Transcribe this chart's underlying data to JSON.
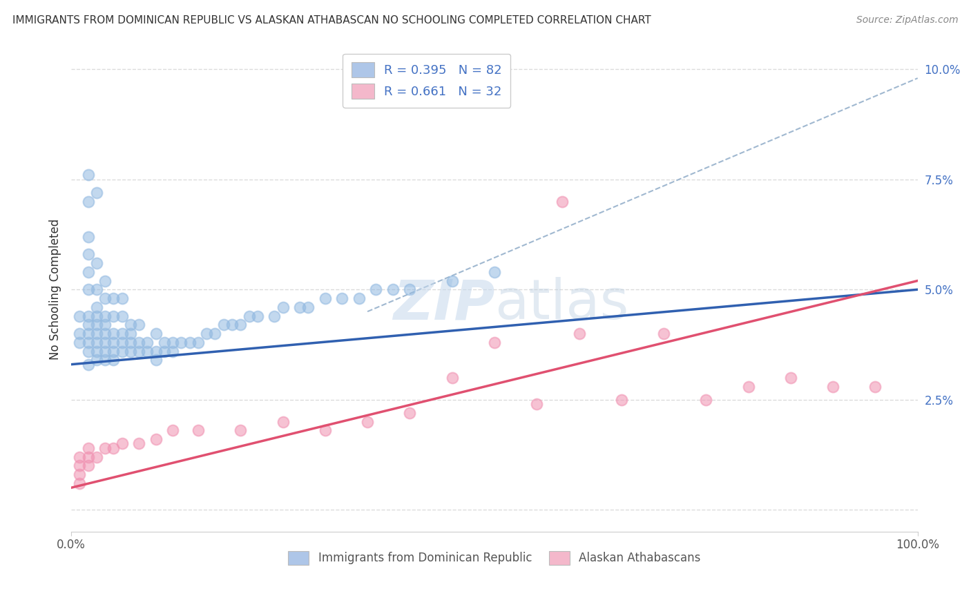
{
  "title": "IMMIGRANTS FROM DOMINICAN REPUBLIC VS ALASKAN ATHABASCAN NO SCHOOLING COMPLETED CORRELATION CHART",
  "source": "Source: ZipAtlas.com",
  "ylabel": "No Schooling Completed",
  "legend_label1": "R = 0.395   N = 82",
  "legend_label2": "R = 0.661   N = 32",
  "legend_color1": "#aec6e8",
  "legend_color2": "#f4b8cb",
  "blue_color": "#90b8e0",
  "pink_color": "#f090b0",
  "blue_line_color": "#3060b0",
  "pink_line_color": "#e05070",
  "dash_line_color": "#a0b8d0",
  "background_color": "#ffffff",
  "grid_color": "#d8d8d8",
  "xlim": [
    0.0,
    1.0
  ],
  "ylim": [
    -0.005,
    0.105
  ],
  "y_tick_vals": [
    0.0,
    0.025,
    0.05,
    0.075,
    0.1
  ],
  "blue_x": [
    0.01,
    0.01,
    0.01,
    0.02,
    0.02,
    0.02,
    0.02,
    0.02,
    0.02,
    0.02,
    0.02,
    0.02,
    0.02,
    0.02,
    0.02,
    0.03,
    0.03,
    0.03,
    0.03,
    0.03,
    0.03,
    0.03,
    0.03,
    0.03,
    0.03,
    0.04,
    0.04,
    0.04,
    0.04,
    0.04,
    0.04,
    0.04,
    0.04,
    0.05,
    0.05,
    0.05,
    0.05,
    0.05,
    0.05,
    0.06,
    0.06,
    0.06,
    0.06,
    0.06,
    0.07,
    0.07,
    0.07,
    0.07,
    0.08,
    0.08,
    0.08,
    0.09,
    0.09,
    0.1,
    0.1,
    0.1,
    0.11,
    0.11,
    0.12,
    0.12,
    0.13,
    0.14,
    0.15,
    0.16,
    0.17,
    0.18,
    0.19,
    0.2,
    0.21,
    0.22,
    0.24,
    0.25,
    0.27,
    0.28,
    0.3,
    0.32,
    0.34,
    0.36,
    0.38,
    0.4,
    0.45,
    0.5
  ],
  "blue_y": [
    0.038,
    0.04,
    0.044,
    0.033,
    0.036,
    0.038,
    0.04,
    0.042,
    0.044,
    0.05,
    0.054,
    0.058,
    0.062,
    0.07,
    0.076,
    0.034,
    0.036,
    0.038,
    0.04,
    0.042,
    0.044,
    0.046,
    0.05,
    0.056,
    0.072,
    0.034,
    0.036,
    0.038,
    0.04,
    0.042,
    0.044,
    0.048,
    0.052,
    0.034,
    0.036,
    0.038,
    0.04,
    0.044,
    0.048,
    0.036,
    0.038,
    0.04,
    0.044,
    0.048,
    0.036,
    0.038,
    0.04,
    0.042,
    0.036,
    0.038,
    0.042,
    0.036,
    0.038,
    0.034,
    0.036,
    0.04,
    0.036,
    0.038,
    0.036,
    0.038,
    0.038,
    0.038,
    0.038,
    0.04,
    0.04,
    0.042,
    0.042,
    0.042,
    0.044,
    0.044,
    0.044,
    0.046,
    0.046,
    0.046,
    0.048,
    0.048,
    0.048,
    0.05,
    0.05,
    0.05,
    0.052,
    0.054
  ],
  "pink_x": [
    0.01,
    0.01,
    0.01,
    0.01,
    0.02,
    0.02,
    0.02,
    0.03,
    0.04,
    0.05,
    0.06,
    0.08,
    0.1,
    0.12,
    0.15,
    0.2,
    0.25,
    0.3,
    0.35,
    0.4,
    0.45,
    0.5,
    0.55,
    0.58,
    0.6,
    0.65,
    0.7,
    0.75,
    0.8,
    0.85,
    0.9,
    0.95
  ],
  "pink_y": [
    0.006,
    0.008,
    0.01,
    0.012,
    0.01,
    0.012,
    0.014,
    0.012,
    0.014,
    0.014,
    0.015,
    0.015,
    0.016,
    0.018,
    0.018,
    0.018,
    0.02,
    0.018,
    0.02,
    0.022,
    0.03,
    0.038,
    0.024,
    0.07,
    0.04,
    0.025,
    0.04,
    0.025,
    0.028,
    0.03,
    0.028,
    0.028
  ],
  "blue_trend_x": [
    0.0,
    1.0
  ],
  "blue_trend_y": [
    0.033,
    0.05
  ],
  "pink_trend_x": [
    0.0,
    1.0
  ],
  "pink_trend_y": [
    0.005,
    0.052
  ],
  "dash_trend_x": [
    0.35,
    1.0
  ],
  "dash_trend_y": [
    0.045,
    0.098
  ]
}
